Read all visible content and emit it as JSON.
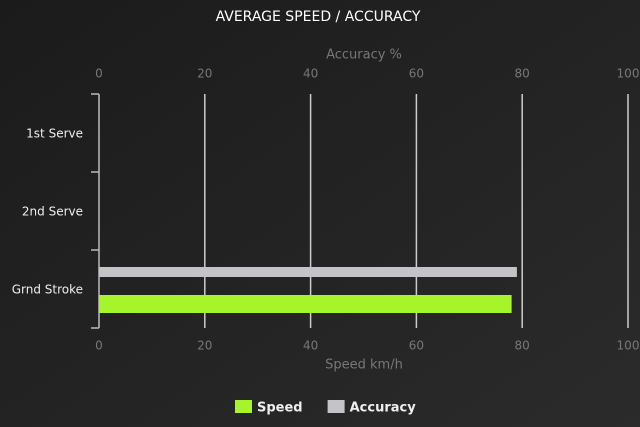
{
  "chart_data": {
    "type": "bar",
    "orientation": "horizontal",
    "title": "AVERAGE SPEED / ACCURACY",
    "xlabel": "Speed km/h",
    "x2label": "Accuracy %",
    "categories": [
      "1st Serve",
      "2nd Serve",
      "Grnd Stroke"
    ],
    "series": [
      {
        "name": "Speed",
        "color": "#a6f42a",
        "values": [
          null,
          null,
          78
        ],
        "axis": "x"
      },
      {
        "name": "Accuracy",
        "color": "#c4c4c8",
        "values": [
          null,
          null,
          79
        ],
        "axis": "x2"
      }
    ],
    "xlim": [
      0,
      100
    ],
    "xticks": [
      0,
      20,
      40,
      60,
      80,
      100
    ],
    "x2lim": [
      0,
      100
    ],
    "x2ticks": [
      0,
      20,
      40,
      60,
      80,
      100
    ],
    "grid": true,
    "legend": "bottom"
  }
}
